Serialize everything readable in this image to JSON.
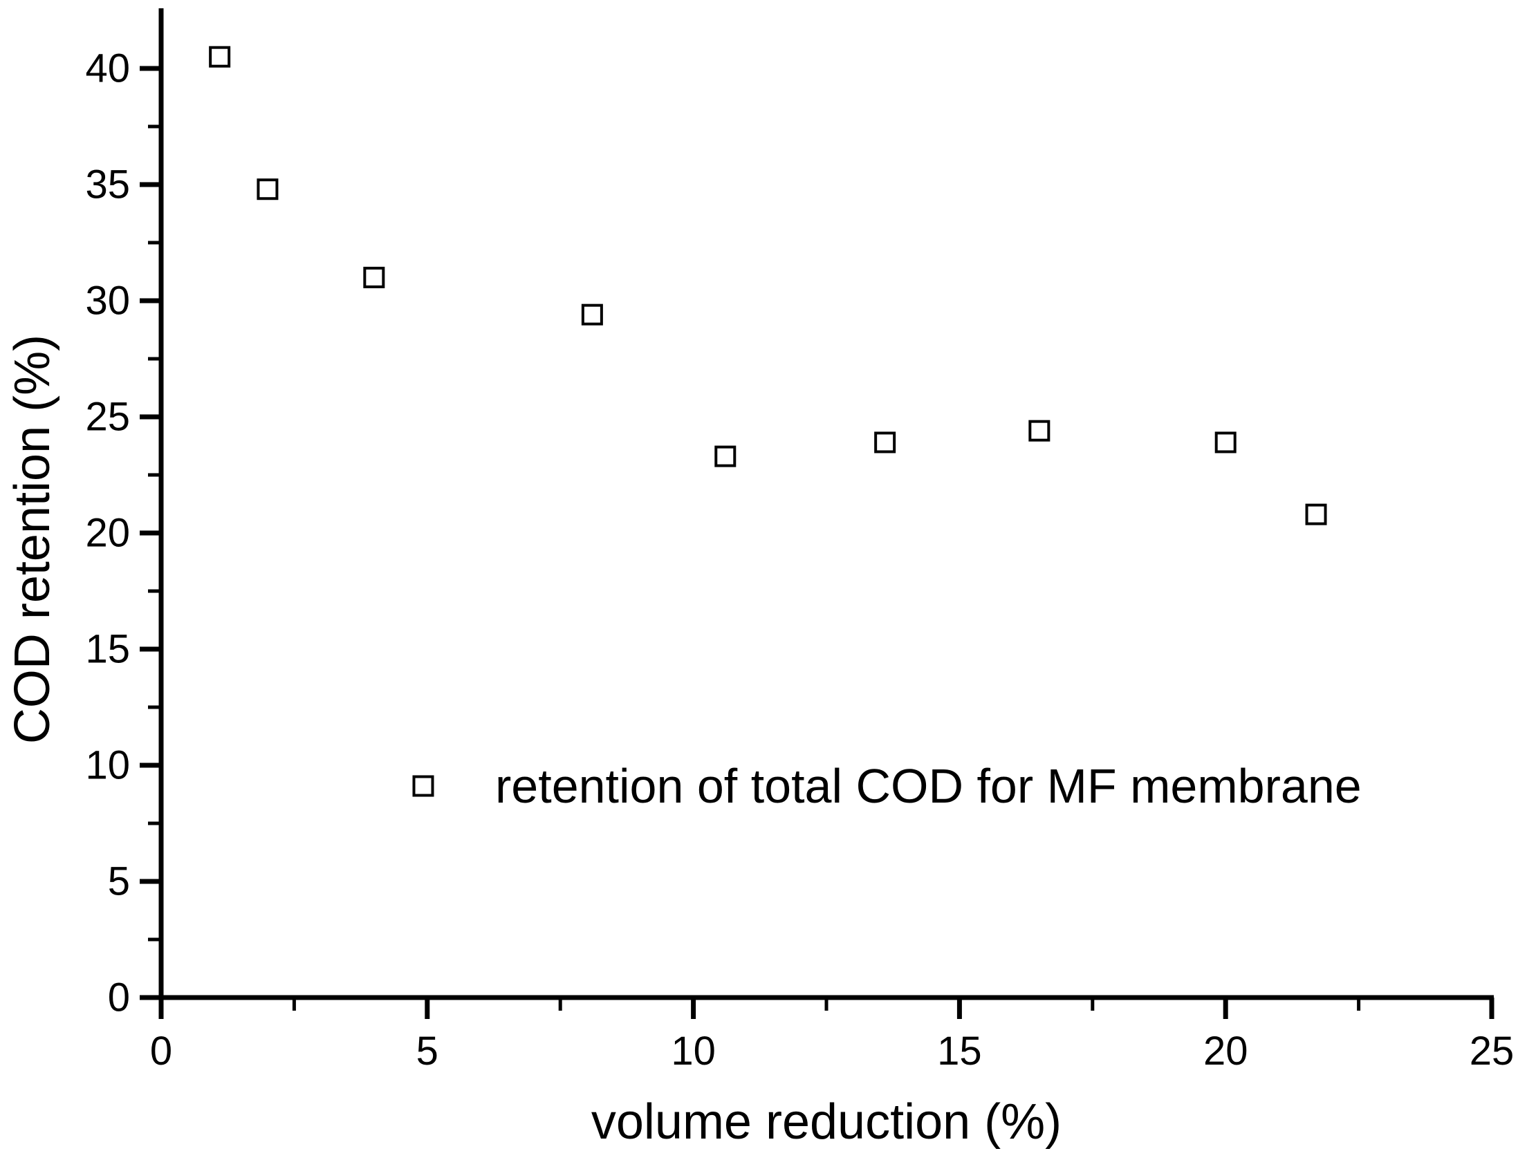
{
  "figure": {
    "background": "#ffffff",
    "ink_color": "#000000"
  },
  "chart_data": {
    "type": "scatter",
    "title": "",
    "xlabel": "volume reduction (%)",
    "ylabel": "COD retention (%)",
    "xlim": [
      0,
      25
    ],
    "ylim": [
      0,
      42.6
    ],
    "grid": false,
    "x_major_ticks": [
      0,
      5,
      10,
      15,
      20,
      25
    ],
    "x_tick_labels": [
      "0",
      "5",
      "10",
      "15",
      "20",
      "25"
    ],
    "x_minor_ticks": [
      2.5,
      7.5,
      12.5,
      17.5,
      22.5
    ],
    "y_major_ticks": [
      0,
      5,
      10,
      15,
      20,
      25,
      30,
      35,
      40
    ],
    "y_tick_labels": [
      "0",
      "5",
      "10",
      "15",
      "20",
      "25",
      "30",
      "35",
      "40"
    ],
    "y_minor_ticks": [
      2.5,
      7.5,
      12.5,
      17.5,
      22.5,
      27.5,
      32.5,
      37.5
    ],
    "legend_position": "inside-left-lower-middle",
    "series": [
      {
        "name": "retention of total COD for MF membrane",
        "marker": "open-square",
        "color": "#000000",
        "points": [
          {
            "x": 1.1,
            "y": 40.5
          },
          {
            "x": 2.0,
            "y": 34.8
          },
          {
            "x": 4.0,
            "y": 31.0
          },
          {
            "x": 8.1,
            "y": 29.4
          },
          {
            "x": 10.6,
            "y": 23.3
          },
          {
            "x": 13.6,
            "y": 23.9
          },
          {
            "x": 16.5,
            "y": 24.4
          },
          {
            "x": 20.0,
            "y": 23.9
          },
          {
            "x": 21.7,
            "y": 20.8
          }
        ]
      }
    ]
  },
  "legend": {
    "marker_icon": "open-square-icon",
    "label": "retention of total COD for MF membrane"
  }
}
